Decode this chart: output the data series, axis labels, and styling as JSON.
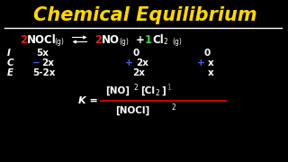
{
  "bg_color": "#000000",
  "title": "Chemical Equilibrium",
  "title_color": "#FFD700",
  "title_fontsize": 15,
  "white": "#FFFFFF",
  "red": "#DD2222",
  "blue": "#4466EE",
  "green": "#44CC44",
  "fraction_line_color": "#CC0000",
  "ice_labels": [
    "I",
    "C",
    "E"
  ],
  "col1_vals": [
    "5x",
    "- 2x",
    "5-2x"
  ],
  "col2_vals": [
    "0",
    "+ 2x",
    "2x"
  ],
  "col3_vals": [
    "0",
    "+ x",
    "x"
  ]
}
